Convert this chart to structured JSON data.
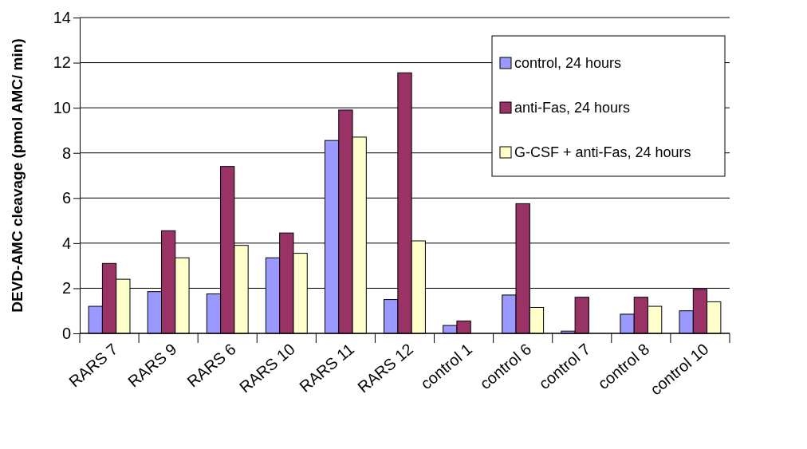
{
  "chart_data": {
    "type": "bar",
    "ylabel": "DEVD-AMC cleavage (pmol AMC/ min)",
    "categories": [
      "RARS 7",
      "RARS 9",
      "RARS 6",
      "RARS 10",
      "RARS 11",
      "RARS 12",
      "control 1",
      "control 6",
      "control 7",
      "control 8",
      "control 10"
    ],
    "series": [
      {
        "name": "control, 24 hours",
        "color": "#9999ff",
        "values": [
          1.2,
          1.85,
          1.75,
          3.35,
          8.55,
          1.5,
          0.35,
          1.7,
          0.1,
          0.85,
          1.0
        ]
      },
      {
        "name": "anti-Fas, 24 hours",
        "color": "#993366",
        "values": [
          3.1,
          4.55,
          7.4,
          4.45,
          9.9,
          11.55,
          0.55,
          5.75,
          1.6,
          1.6,
          1.95
        ]
      },
      {
        "name": "G-CSF + anti-Fas, 24 hours",
        "color": "#ffffcc",
        "values": [
          2.4,
          3.35,
          3.9,
          3.55,
          8.7,
          4.1,
          null,
          1.15,
          null,
          1.2,
          1.4
        ]
      }
    ],
    "ylim": [
      0,
      14
    ],
    "yticks": [
      0,
      2,
      4,
      6,
      8,
      10,
      12,
      14
    ],
    "grid": "y",
    "legend": "top right"
  }
}
